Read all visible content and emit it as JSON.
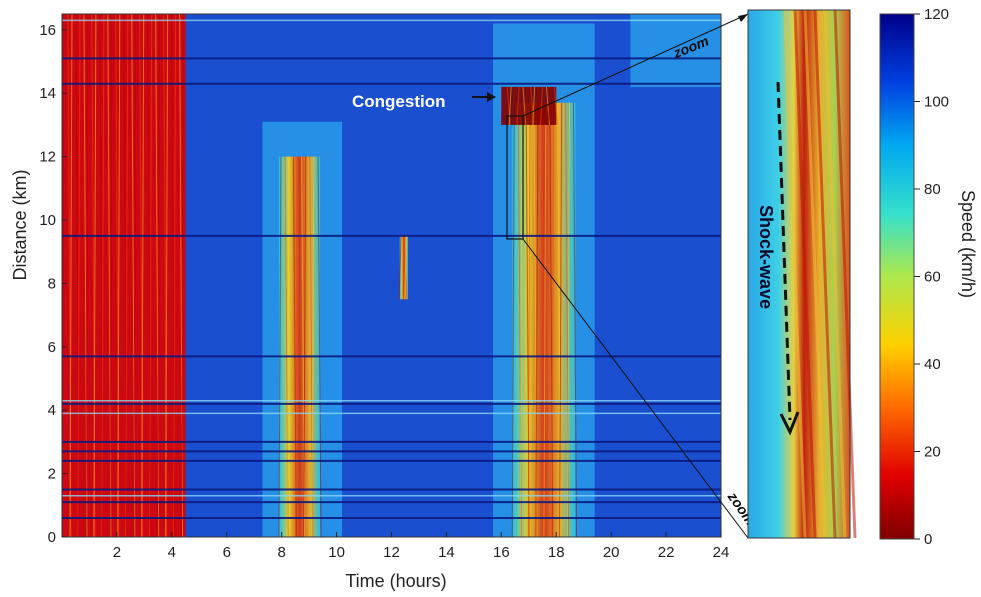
{
  "chart_data": [
    {
      "type": "heatmap",
      "xlabel": "Time (hours)",
      "ylabel": "Distance (km)",
      "xlim": [
        0,
        24
      ],
      "ylim": [
        0,
        16.5
      ],
      "x_ticks": [
        2,
        4,
        6,
        8,
        10,
        12,
        14,
        16,
        18,
        20,
        22,
        24
      ],
      "y_ticks": [
        0,
        2,
        4,
        6,
        8,
        10,
        12,
        14,
        16
      ],
      "congestion_zones": [
        {
          "t_start": 0.0,
          "t_end": 4.5,
          "d_start": 0.0,
          "d_end": 16.5,
          "speed": 15
        },
        {
          "t_start": 7.9,
          "t_end": 9.4,
          "d_start": 0.0,
          "d_end": 12.0,
          "speed": 35
        },
        {
          "t_start": 16.4,
          "t_end": 18.7,
          "d_start": 0.0,
          "d_end": 13.7,
          "speed": 30
        },
        {
          "t_start": 16.0,
          "t_end": 18.0,
          "d_start": 13.0,
          "d_end": 14.2,
          "speed": 10
        },
        {
          "t_start": 12.3,
          "t_end": 12.6,
          "d_start": 7.5,
          "d_end": 9.5,
          "speed": 50
        }
      ],
      "annotations": [
        {
          "text": "Congestion",
          "x": 14.5,
          "y": 13.0
        },
        {
          "text": "zoom",
          "x": 22.5,
          "y": 15.2
        },
        {
          "text": "zoom",
          "x": 22.5,
          "y": 0.6
        }
      ]
    },
    {
      "type": "heatmap",
      "annotations": [
        {
          "text": "Shock-wave"
        }
      ]
    },
    {
      "type": "colorbar",
      "label": "Speed (km/h)",
      "ticks": [
        0,
        20,
        40,
        60,
        80,
        100,
        120
      ],
      "range": [
        0,
        120
      ]
    }
  ],
  "colors": {
    "low": "#7a0000",
    "mid": "#ffe000",
    "high": "#00008c",
    "background": "#1a4fd0"
  }
}
